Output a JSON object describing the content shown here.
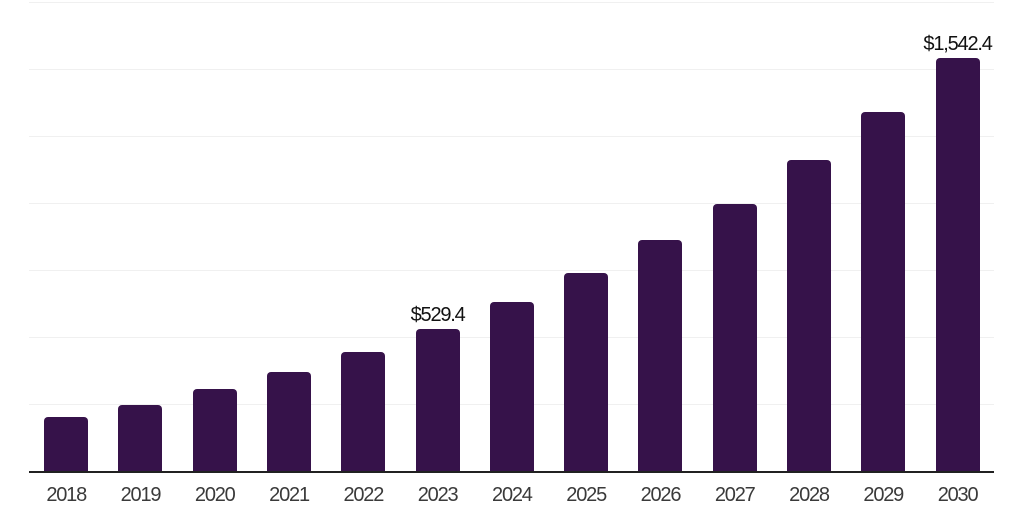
{
  "chart_data": {
    "type": "bar",
    "title": "",
    "xlabel": "",
    "ylabel": "",
    "categories": [
      "2018",
      "2019",
      "2020",
      "2021",
      "2022",
      "2023",
      "2024",
      "2025",
      "2026",
      "2027",
      "2028",
      "2029",
      "2030"
    ],
    "values": [
      200,
      245,
      305,
      369,
      443,
      529.4,
      630,
      738,
      861,
      995,
      1159,
      1341,
      1542.4
    ],
    "data_labels": [
      "",
      "",
      "",
      "",
      "",
      "$529.4",
      "",
      "",
      "",
      "",
      "",
      "",
      "$1,542.4"
    ],
    "ylim": [
      0,
      1750
    ],
    "gridline_step": 250,
    "grid": true,
    "legend": "none",
    "y_axis_labels_visible": false,
    "bar_color": "#36124a",
    "axis_color": "#212121",
    "gridline_color": "#f0f0f0",
    "x_tick_label_color": "#3a3a3a",
    "data_label_color": "#111111",
    "background_color": "#ffffff"
  }
}
